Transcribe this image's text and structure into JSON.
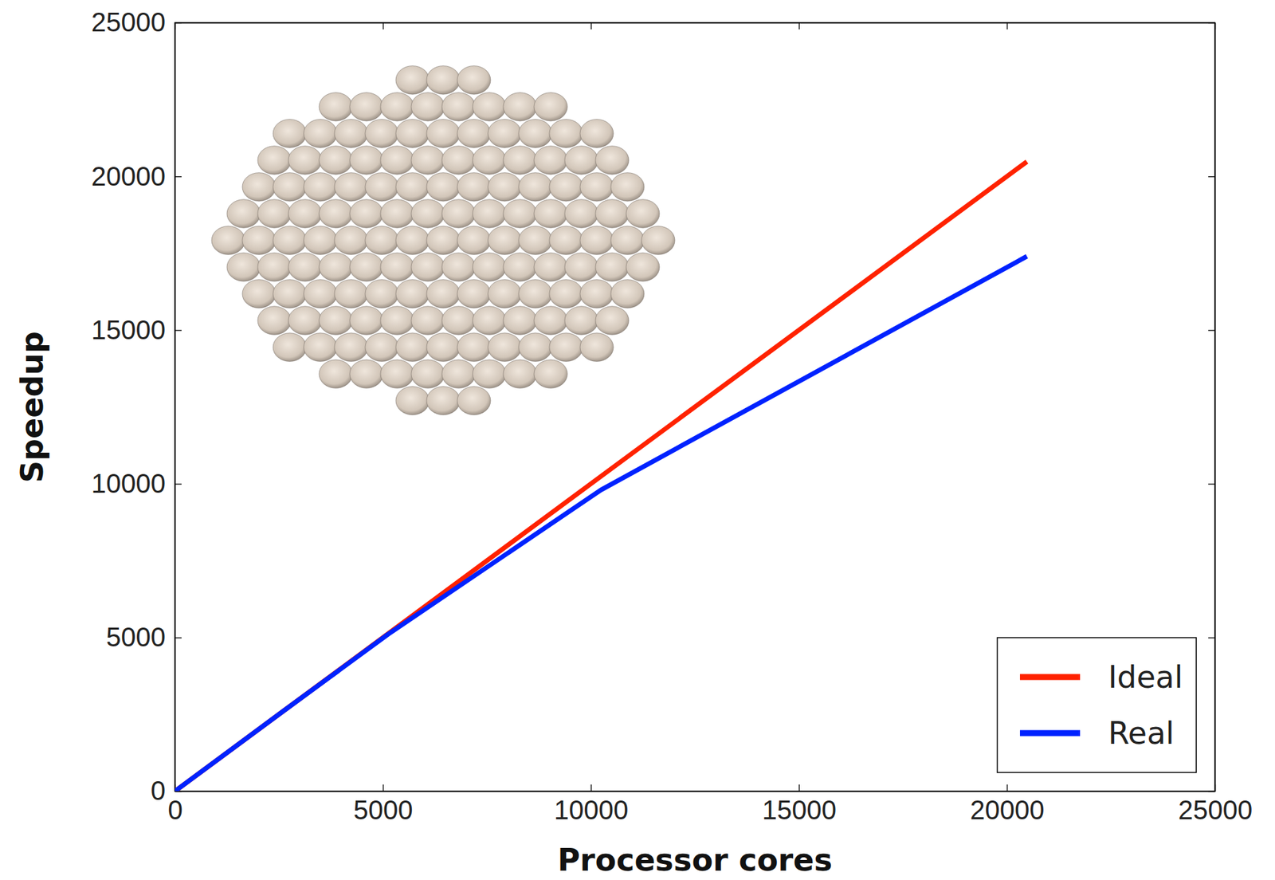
{
  "chart_data": {
    "type": "line",
    "x_label": "Processor cores",
    "y_label": "Speedup",
    "x": [
      0,
      2560,
      5120,
      10240,
      20480
    ],
    "series": [
      {
        "name": "Ideal",
        "color": "#ff2200",
        "values": [
          0,
          2560,
          5120,
          10240,
          20480
        ]
      },
      {
        "name": "Real",
        "color": "#0022ff",
        "values": [
          0,
          2560,
          5100,
          9800,
          17400
        ]
      }
    ],
    "xlim": [
      0,
      25000
    ],
    "xticks": [
      0,
      5000,
      10000,
      15000,
      20000,
      25000
    ],
    "ylim": [
      0,
      25000
    ],
    "yticks": [
      0,
      5000,
      10000,
      15000,
      20000,
      25000
    ],
    "grid": false,
    "legend": "lower right"
  }
}
